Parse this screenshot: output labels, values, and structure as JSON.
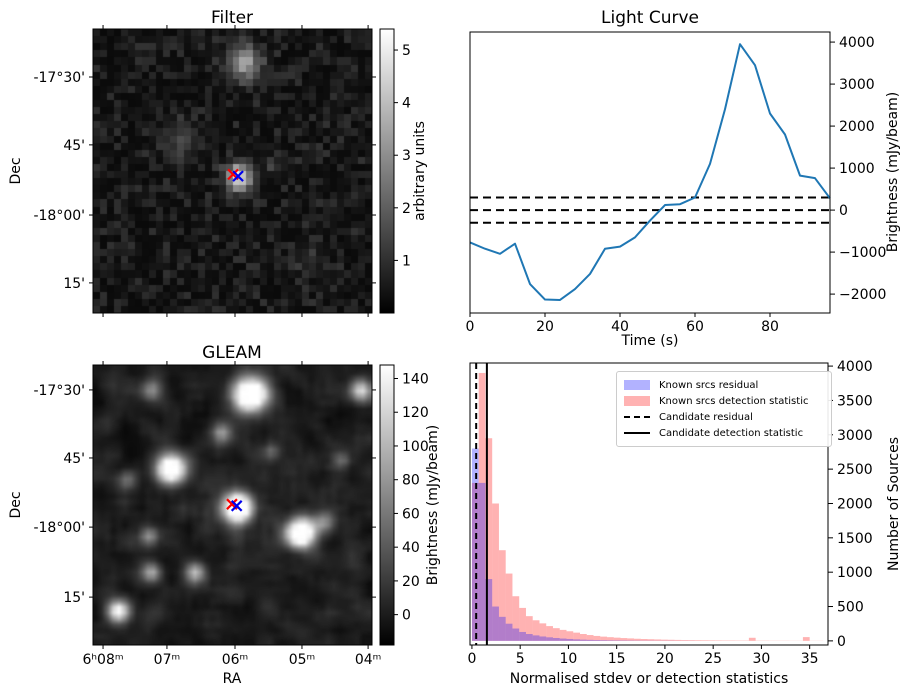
{
  "figure": {
    "background": "#ffffff"
  },
  "chart_data": [
    {
      "id": "filter",
      "type": "heatmap",
      "title": "Filter",
      "xlabel": "",
      "ylabel": "Dec",
      "x_ticks": {
        "labels": [],
        "frac": [
          0.036,
          0.265,
          0.509,
          0.749,
          0.986
        ]
      },
      "y_ticks": {
        "labels": [
          "-17°30'",
          "45'",
          "-18°00'",
          "15'"
        ],
        "frac": [
          0.169,
          0.408,
          0.655,
          0.894
        ]
      },
      "colorbar": {
        "label": "arbitrary units",
        "ticks": [
          1,
          2,
          3,
          4,
          5
        ],
        "vmin": 0,
        "vmax": 5.4
      },
      "image": {
        "seed": 3,
        "grid": 40,
        "floor": 0.04,
        "amp": 0.16,
        "pow": 2,
        "smooth": 0,
        "sources": [
          {
            "x": 0.53,
            "y": 0.105,
            "r": 1.6,
            "i": 0.55
          },
          {
            "x": 0.51,
            "y": 0.51,
            "r": 1.3,
            "i": 0.85
          },
          {
            "x": 0.3,
            "y": 0.38,
            "r": 1.8,
            "i": 0.16
          },
          {
            "x": 0.64,
            "y": 0.47,
            "r": 1.0,
            "i": 0.12
          },
          {
            "x": 0.76,
            "y": 0.8,
            "r": 1.5,
            "i": 0.1
          }
        ]
      },
      "markers": [
        {
          "shape": "x",
          "color": "#ff0000",
          "x": 0.502,
          "y": 0.512
        },
        {
          "shape": "x",
          "color": "#0000ee",
          "x": 0.52,
          "y": 0.518
        }
      ]
    },
    {
      "id": "light_curve",
      "type": "line",
      "title": "Light Curve",
      "xlabel": "Time (s)",
      "ylabel": "Brightness (mJy/beam)",
      "line_color": "#1f77b4",
      "x": [
        0,
        4,
        8,
        12,
        16,
        20,
        24,
        28,
        32,
        36,
        40,
        44,
        48,
        52,
        56,
        60,
        64,
        68,
        72,
        76,
        80,
        84,
        88,
        92,
        96
      ],
      "y": [
        -770,
        -920,
        -1040,
        -800,
        -1760,
        -2130,
        -2140,
        -1880,
        -1520,
        -920,
        -870,
        -650,
        -250,
        120,
        140,
        300,
        1100,
        2400,
        3950,
        3450,
        2300,
        1800,
        820,
        760,
        280
      ],
      "dashed_hlines": [
        300,
        0,
        -300
      ],
      "xlim": [
        0,
        96
      ],
      "ylim": [
        -2450,
        4240
      ],
      "x_ticks": [
        0,
        20,
        40,
        60,
        80
      ],
      "y_ticks": [
        -2000,
        -1000,
        0,
        1000,
        2000,
        3000,
        4000
      ]
    },
    {
      "id": "gleam",
      "type": "heatmap",
      "title": "GLEAM",
      "xlabel": "RA",
      "ylabel": "Dec",
      "x_ticks": {
        "labels": [
          "6ʰ08ᵐ",
          "07ᵐ",
          "06ᵐ",
          "05ᵐ",
          "04ᵐ"
        ],
        "frac": [
          0.036,
          0.265,
          0.509,
          0.749,
          0.986
        ]
      },
      "y_ticks": {
        "labels": [
          "-17°30'",
          "45'",
          "-18°00'",
          "15'"
        ],
        "frac": [
          0.089,
          0.332,
          0.579,
          0.829
        ]
      },
      "colorbar": {
        "label": "Brightness (mJy/beam)",
        "ticks": [
          0,
          20,
          40,
          60,
          80,
          100,
          120,
          140
        ],
        "vmin": -18,
        "vmax": 148
      },
      "image": {
        "seed": 11,
        "grid": 48,
        "floor": 0.03,
        "amp": 0.3,
        "pow": 2.2,
        "smooth": 1,
        "sources": [
          {
            "x": 0.555,
            "y": 0.095,
            "r": 2.0,
            "i": 1.5
          },
          {
            "x": 0.27,
            "y": 0.36,
            "r": 1.7,
            "i": 1.4
          },
          {
            "x": 0.508,
            "y": 0.5,
            "r": 1.7,
            "i": 1.6
          },
          {
            "x": 0.735,
            "y": 0.59,
            "r": 1.7,
            "i": 1.5
          },
          {
            "x": 0.95,
            "y": 0.08,
            "r": 1.3,
            "i": 0.8
          },
          {
            "x": 0.2,
            "y": 0.08,
            "r": 1.2,
            "i": 0.5
          },
          {
            "x": 0.45,
            "y": 0.235,
            "r": 1.2,
            "i": 0.55
          },
          {
            "x": 0.115,
            "y": 0.4,
            "r": 1.1,
            "i": 0.35
          },
          {
            "x": 0.19,
            "y": 0.6,
            "r": 1.1,
            "i": 0.5
          },
          {
            "x": 0.2,
            "y": 0.73,
            "r": 1.1,
            "i": 0.55
          },
          {
            "x": 0.355,
            "y": 0.73,
            "r": 1.2,
            "i": 0.7
          },
          {
            "x": 0.08,
            "y": 0.87,
            "r": 1.3,
            "i": 1.0
          },
          {
            "x": 0.82,
            "y": 0.55,
            "r": 1.2,
            "i": 0.45
          },
          {
            "x": 0.63,
            "y": 0.3,
            "r": 1.0,
            "i": 0.3
          },
          {
            "x": 0.88,
            "y": 0.33,
            "r": 1.0,
            "i": 0.3
          }
        ]
      },
      "markers": [
        {
          "shape": "x",
          "color": "#ff0000",
          "x": 0.498,
          "y": 0.497
        },
        {
          "shape": "x",
          "color": "#0000ee",
          "x": 0.515,
          "y": 0.503
        }
      ]
    },
    {
      "id": "histogram",
      "type": "bar",
      "title": "",
      "xlabel": "Normalised stdev or detection statistics",
      "ylabel": "Number of Sources",
      "bin_start": 0,
      "bin_width": 0.7,
      "series": [
        {
          "name": "Known srcs detection statistic",
          "color": "rgba(255,0,0,0.3)",
          "values": [
            2300,
            3900,
            2950,
            2000,
            1320,
            980,
            650,
            480,
            360,
            300,
            255,
            215,
            185,
            160,
            140,
            120,
            100,
            85,
            72,
            62,
            54,
            47,
            41,
            36,
            31,
            27,
            24,
            21,
            18,
            16,
            14,
            12,
            11,
            10,
            9,
            8,
            7,
            6,
            6,
            5,
            5,
            45,
            4,
            4,
            3,
            3,
            3,
            2,
            2,
            55,
            2,
            2
          ]
        },
        {
          "name": "Known srcs residual",
          "color": "rgba(0,0,255,0.3)",
          "values": [
            2800,
            2300,
            900,
            500,
            350,
            250,
            180,
            130,
            100,
            80,
            64,
            52,
            42,
            34,
            28,
            22,
            18,
            15,
            12,
            10,
            8,
            7,
            6,
            5,
            4,
            3,
            3,
            2,
            2,
            2,
            1,
            1,
            1,
            0,
            0,
            0,
            0,
            0,
            0,
            0,
            0,
            0,
            0,
            0,
            0,
            0,
            0,
            0,
            0,
            0,
            0,
            0
          ]
        }
      ],
      "vlines": [
        {
          "name": "Candidate residual",
          "style": "dashed",
          "x": 0.44,
          "color": "#000000"
        },
        {
          "name": "Candidate detection statistic",
          "style": "solid",
          "x": 1.55,
          "color": "#000000"
        }
      ],
      "xlim": [
        -0.2,
        36.9
      ],
      "ylim": [
        -60,
        4045
      ],
      "x_ticks": [
        0,
        5,
        10,
        15,
        20,
        25,
        30,
        35
      ],
      "y_ticks": [
        0,
        500,
        1000,
        1500,
        2000,
        2500,
        3000,
        3500,
        4000
      ],
      "legend": {
        "entries": [
          {
            "label": "Known srcs residual",
            "swatch": "patch",
            "color": "#b2b2ff"
          },
          {
            "label": "Known srcs detection statistic",
            "swatch": "patch",
            "color": "#ffb2b2"
          },
          {
            "label": "Candidate residual",
            "swatch": "dashed",
            "color": "#000000"
          },
          {
            "label": "Candidate detection statistic",
            "swatch": "solid",
            "color": "#000000"
          }
        ]
      }
    }
  ]
}
